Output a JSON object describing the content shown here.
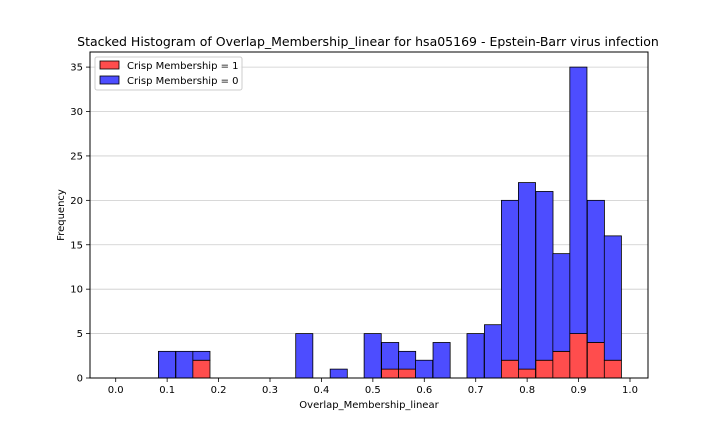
{
  "chart_data": {
    "type": "bar",
    "stacked": true,
    "title": "Stacked Histogram of Overlap_Membership_linear for hsa05169 - Epstein-Barr virus infection",
    "xlabel": "Overlap_Membership_linear",
    "ylabel": "Frequency",
    "xlim": [
      -0.05,
      1.035
    ],
    "ylim": [
      0,
      36.7
    ],
    "grid": "y",
    "legend_position": "top-left",
    "bin_width": 0.0333,
    "xticks": [
      "0.0",
      "0.1",
      "0.2",
      "0.3",
      "0.4",
      "0.5",
      "0.6",
      "0.7",
      "0.8",
      "0.9",
      "1.0"
    ],
    "yticks": [
      "0",
      "5",
      "10",
      "15",
      "20",
      "25",
      "30",
      "35"
    ],
    "bins": [
      0.083,
      0.117,
      0.15,
      0.35,
      0.417,
      0.483,
      0.517,
      0.55,
      0.583,
      0.617,
      0.683,
      0.717,
      0.75,
      0.783,
      0.817,
      0.85,
      0.883,
      0.917,
      0.95
    ],
    "series": [
      {
        "name": "Crisp Membership = 1",
        "color": "#ff4d4d",
        "values": [
          0,
          0,
          2,
          0,
          0,
          0,
          1,
          1,
          0,
          0,
          0,
          0,
          2,
          1,
          2,
          3,
          5,
          4,
          2
        ]
      },
      {
        "name": "Crisp Membership = 0",
        "color": "#4d4dff",
        "values": [
          3,
          3,
          1,
          5,
          1,
          5,
          3,
          2,
          2,
          4,
          5,
          6,
          18,
          21,
          19,
          11,
          30,
          16,
          14
        ]
      }
    ]
  }
}
